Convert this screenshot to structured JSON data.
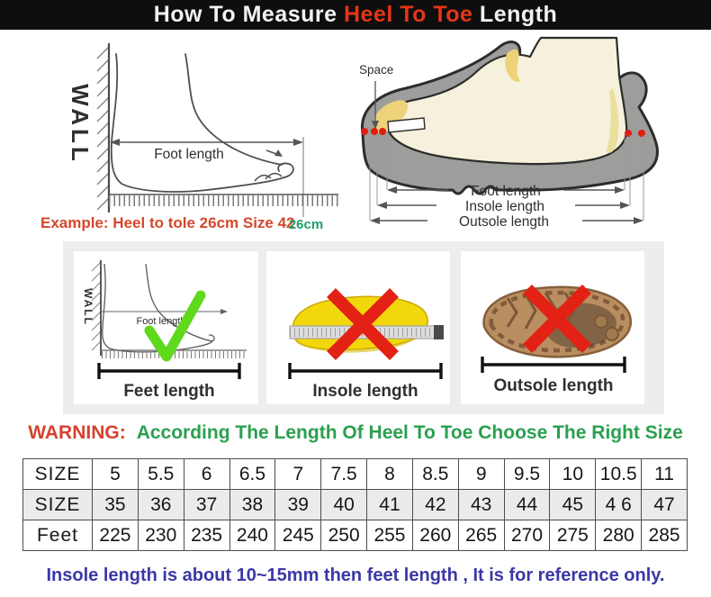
{
  "title": {
    "prefix": "How To Measure ",
    "highlight": "Heel To Toe",
    "suffix": " Length"
  },
  "measure_diagram": {
    "wall_label": "WALL",
    "foot_length_label": "Foot length",
    "example_text": "Example: Heel to tole 26cm Size 42",
    "example_value": "26cm"
  },
  "shoe_diagram": {
    "space_label": "Space",
    "foot_length_label": "Foot length",
    "insole_length_label": "Insole length",
    "outsole_length_label": "Outsole length"
  },
  "method_panels": [
    {
      "label": "Feet length",
      "verdict": "correct",
      "wall_label": "WALL",
      "inner_label": "Foot length"
    },
    {
      "label": "Insole length",
      "verdict": "wrong"
    },
    {
      "label": "Outsole length",
      "verdict": "wrong"
    }
  ],
  "warning": {
    "prefix": "WARNING:",
    "message": "According The Length Of Heel To Toe Choose The Right Size"
  },
  "size_table": {
    "rows": [
      {
        "header": "SIZE",
        "values": [
          "5",
          "5.5",
          "6",
          "6.5",
          "7",
          "7.5",
          "8",
          "8.5",
          "9",
          "9.5",
          "10",
          "10.5",
          "11"
        ]
      },
      {
        "header": "SIZE",
        "values": [
          "35",
          "36",
          "37",
          "38",
          "39",
          "40",
          "41",
          "42",
          "43",
          "44",
          "45",
          "4 6",
          "47"
        ]
      },
      {
        "header": "Feet",
        "values": [
          "225",
          "230",
          "235",
          "240",
          "245",
          "250",
          "255",
          "260",
          "265",
          "270",
          "275",
          "280",
          "285"
        ]
      }
    ]
  },
  "footnote": "Insole length is about 10~15mm then feet length , It is for reference only.",
  "colors": {
    "title_bar_bg": "#0e0e0e",
    "title_highlight": "#e63517",
    "example_red": "#d5472b",
    "example_green": "#1fa06b",
    "warning_red": "#d5422c",
    "warning_green": "#2aa04f",
    "footnote_blue": "#3b38a6",
    "check_green": "#5fd91c",
    "cross_red": "#e32114",
    "insole_yellow": "#f3d70d",
    "outsole_brown": "#b98e60",
    "shoe_gray": "#9d9d9b"
  }
}
